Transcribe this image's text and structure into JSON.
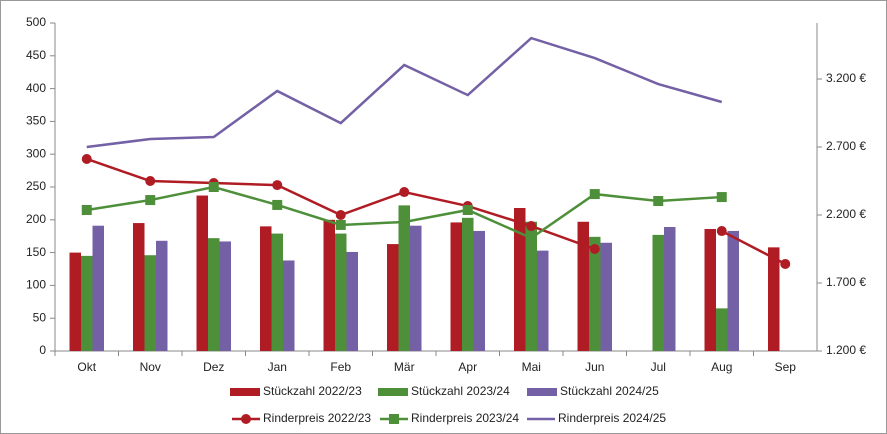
{
  "chart_data": {
    "type": "bar",
    "categories": [
      "Okt",
      "Nov",
      "Dez",
      "Jan",
      "Feb",
      "Mär",
      "Apr",
      "Mai",
      "Jun",
      "Jul",
      "Aug",
      "Sep"
    ],
    "ylim": [
      0,
      500
    ],
    "yticks": [
      0,
      50,
      100,
      150,
      200,
      250,
      300,
      350,
      400,
      450,
      500
    ],
    "y2lim": [
      1200,
      3612
    ],
    "y2ticks": [
      {
        "value": 1200,
        "label": "1.200 €"
      },
      {
        "value": 1700,
        "label": "1.700 €"
      },
      {
        "value": 2200,
        "label": "2.200 €"
      },
      {
        "value": 2700,
        "label": "2.700 €"
      },
      {
        "value": 3200,
        "label": "3.200 €"
      }
    ],
    "series": [
      {
        "name": "Stückzahl 2022/23",
        "type": "bar",
        "color": "#b01c24",
        "values": [
          150,
          195,
          237,
          190,
          200,
          163,
          196,
          218,
          197,
          null,
          186,
          158
        ]
      },
      {
        "name": "Stückzahl 2023/24",
        "type": "bar",
        "color": "#4e8f3a",
        "values": [
          145,
          146,
          172,
          179,
          179,
          222,
          203,
          197,
          174,
          177,
          65,
          null
        ]
      },
      {
        "name": "Stückzahl 2024/25",
        "type": "bar",
        "color": "#7360a5",
        "values": [
          191,
          168,
          167,
          138,
          151,
          191,
          183,
          153,
          165,
          189,
          183,
          null
        ]
      },
      {
        "name": "Rinderpreis 2022/23",
        "type": "line",
        "axis": "y2",
        "marker": "circle",
        "color": "#b01c24",
        "values": [
          2612,
          2450,
          2435,
          2420,
          2200,
          2369,
          2266,
          2119,
          1950,
          null,
          2082,
          1840
        ]
      },
      {
        "name": "Rinderpreis 2023/24",
        "type": "line",
        "axis": "y2",
        "marker": "square",
        "color": "#4e8f3a",
        "values": [
          2237,
          2310,
          2406,
          2274,
          2127,
          2149,
          2237,
          2031,
          2354,
          2303,
          2332,
          null
        ]
      },
      {
        "name": "Rinderpreis 2024/25",
        "type": "line",
        "axis": "y2",
        "color": "#7360a5",
        "values": [
          2700,
          2759,
          2774,
          3112,
          2876,
          3303,
          3082,
          3501,
          3354,
          3163,
          3031,
          null
        ]
      }
    ]
  }
}
